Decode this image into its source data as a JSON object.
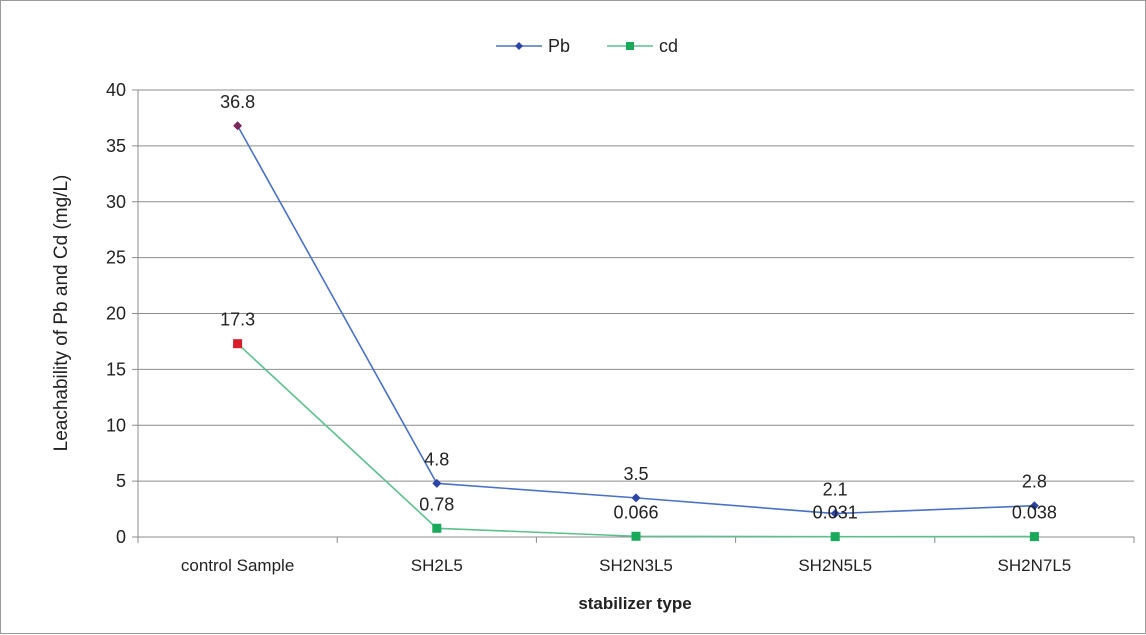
{
  "chart_data": {
    "type": "line",
    "title": "",
    "xlabel": "stabilizer type",
    "ylabel": "Leachability of Pb and Cd (mg/L)",
    "categories": [
      "control Sample",
      "SH2L5",
      "SH2N3L5",
      "SH2N5L5",
      "SH2N7L5"
    ],
    "ylim": [
      0,
      40
    ],
    "yticks": [
      0,
      5,
      10,
      15,
      20,
      25,
      30,
      35,
      40
    ],
    "grid": true,
    "legend_position": "top-center",
    "series": [
      {
        "name": "Pb",
        "values": [
          36.8,
          4.8,
          3.5,
          2.1,
          2.8
        ],
        "labels": [
          "36.8",
          "4.8",
          "3.5",
          "2.1",
          "2.8"
        ],
        "color": "#4a72c4",
        "marker_color": "#2b44a8",
        "first_marker_color": "#7a2a5a",
        "marker": "diamond"
      },
      {
        "name": "cd",
        "values": [
          17.3,
          0.78,
          0.066,
          0.031,
          0.038
        ],
        "labels": [
          "17.3",
          "0.78",
          "0.066",
          "0.031",
          "0.038"
        ],
        "color": "#5cc08e",
        "marker_color": "#1aa85a",
        "first_marker_color": "#d81e2a",
        "marker": "square"
      }
    ]
  }
}
